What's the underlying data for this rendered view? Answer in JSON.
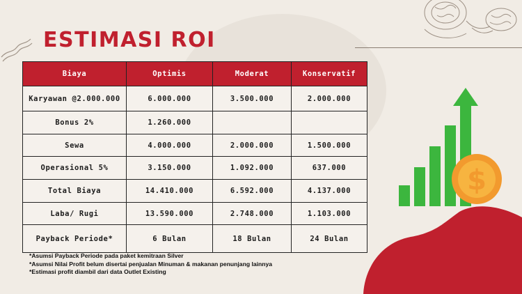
{
  "title": "ESTIMASI ROI",
  "table": {
    "headers": [
      "Biaya",
      "Optimis",
      "Moderat",
      "Konservatif"
    ],
    "rows": [
      [
        "Karyawan @2.000.000",
        "6.000.000",
        "3.500.000",
        "2.000.000"
      ],
      [
        "Bonus 2%",
        "1.260.000",
        "",
        ""
      ],
      [
        "Sewa",
        "4.000.000",
        "2.000.000",
        "1.500.000"
      ],
      [
        "Operasional 5%",
        "3.150.000",
        "1.092.000",
        "637.000"
      ],
      [
        "Total Biaya",
        "14.410.000",
        "6.592.000",
        "4.137.000"
      ],
      [
        "Laba/ Rugi",
        "13.590.000",
        "2.748.000",
        "1.103.000"
      ],
      [
        "Payback Periode*",
        "6 Bulan",
        "18 Bulan",
        "24 Bulan"
      ]
    ]
  },
  "notes": [
    "*Asumsi Payback Periode pada paket kemitraan Silver",
    "*Asumsi Nilai Profit belum disertai penjualan Minuman & makanan penunjang lainnya",
    "*Estimasi profit diambil dari data Outlet Existing"
  ],
  "colors": {
    "accent": "#c0202e",
    "background": "#f1ece5",
    "chart_green": "#3cb63e",
    "coin_orange": "#f29a2e"
  },
  "icons": [
    "growth-chart-icon",
    "dollar-coin-icon",
    "food-sketch-icon",
    "squiggle-icon"
  ]
}
